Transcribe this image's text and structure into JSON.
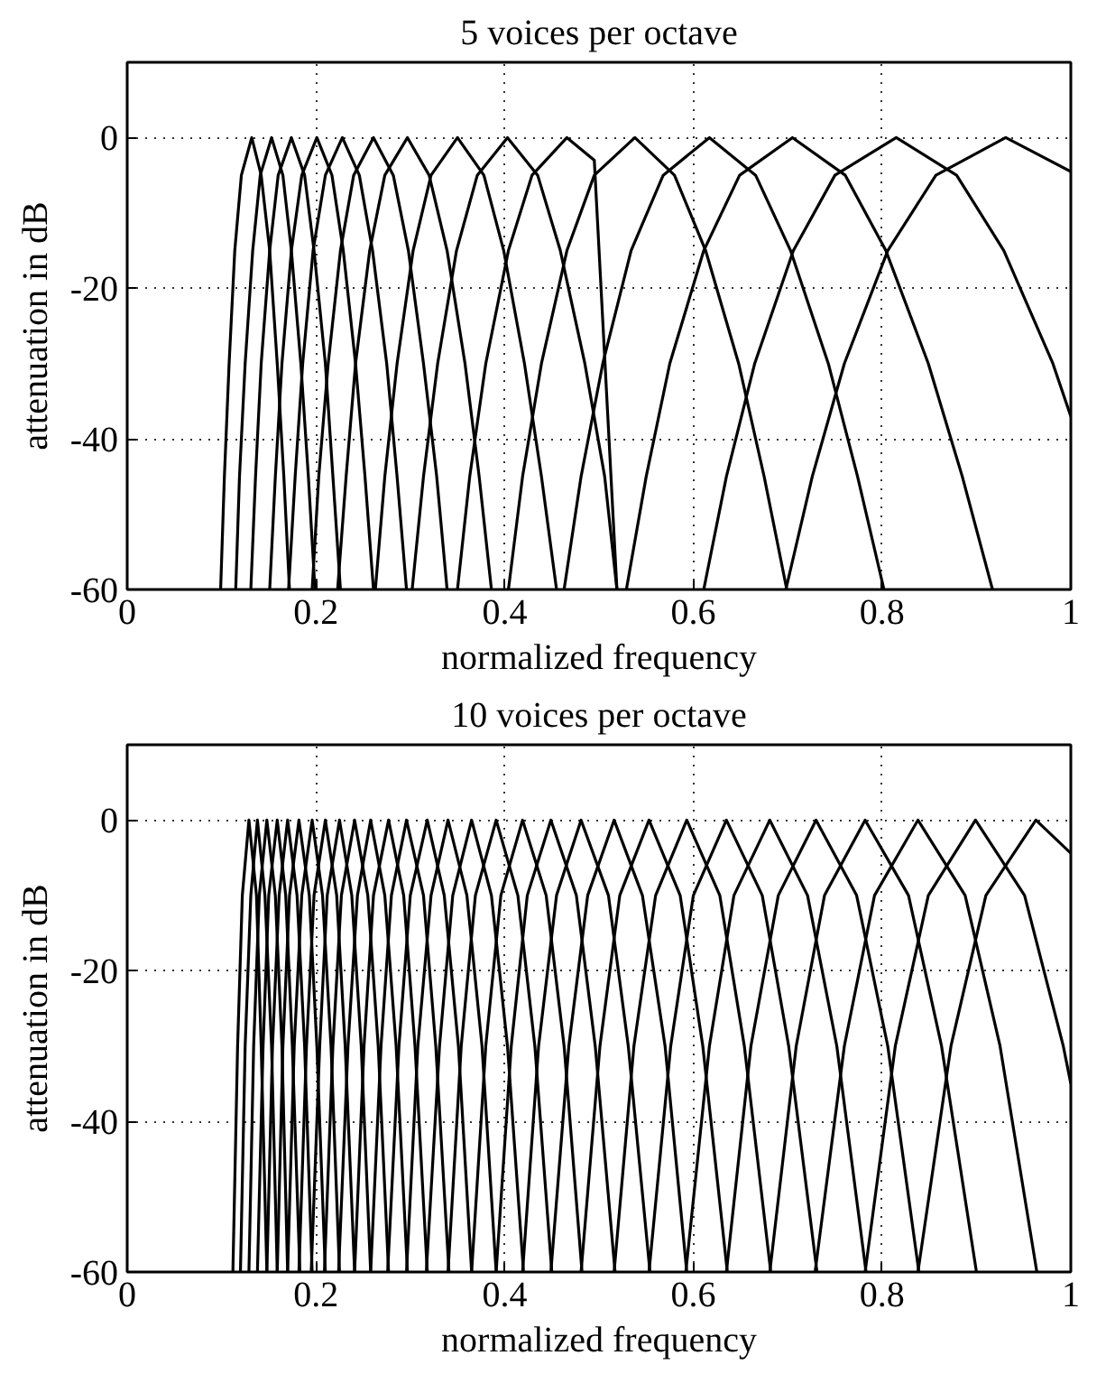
{
  "chart_data": [
    {
      "type": "line",
      "title": "5 voices per octave",
      "xlabel": "normalized frequency",
      "ylabel": "attenuation in dB",
      "xlim": [
        0,
        1
      ],
      "ylim": [
        -60,
        10
      ],
      "xticks": [
        0,
        0.2,
        0.4,
        0.6,
        0.8,
        1
      ],
      "yticks": [
        -60,
        -40,
        -20,
        0
      ],
      "grid": true,
      "series": [
        {
          "color": "#000000",
          "x": [
            0.099,
            0.103,
            0.108,
            0.114,
            0.121,
            0.132,
            0.142,
            0.151,
            0.159,
            0.166,
            0.172
          ],
          "values": [
            -60,
            -45,
            -30,
            -15,
            -5,
            0,
            -5,
            -15,
            -30,
            -45,
            -60
          ]
        },
        {
          "color": "#000000",
          "x": [
            0.115,
            0.119,
            0.125,
            0.133,
            0.141,
            0.153,
            0.165,
            0.174,
            0.184,
            0.192,
            0.199
          ],
          "values": [
            -60,
            -45,
            -30,
            -15,
            -5,
            0,
            -5,
            -15,
            -30,
            -45,
            -60
          ]
        },
        {
          "color": "#000000",
          "x": [
            0.131,
            0.136,
            0.142,
            0.151,
            0.16,
            0.174,
            0.188,
            0.198,
            0.21,
            0.218,
            0.226
          ],
          "values": [
            -60,
            -45,
            -30,
            -15,
            -5,
            0,
            -5,
            -15,
            -30,
            -45,
            -60
          ]
        },
        {
          "color": "#000000",
          "x": [
            0.151,
            0.157,
            0.164,
            0.174,
            0.185,
            0.201,
            0.217,
            0.229,
            0.242,
            0.252,
            0.261
          ],
          "values": [
            -60,
            -45,
            -30,
            -15,
            -5,
            0,
            -5,
            -15,
            -30,
            -45,
            -60
          ]
        },
        {
          "color": "#000000",
          "x": [
            0.171,
            0.178,
            0.186,
            0.197,
            0.21,
            0.228,
            0.246,
            0.26,
            0.275,
            0.286,
            0.296
          ],
          "values": [
            -60,
            -45,
            -30,
            -15,
            -5,
            0,
            -5,
            -15,
            -30,
            -45,
            -60
          ]
        },
        {
          "color": "#000000",
          "x": [
            0.196,
            0.203,
            0.213,
            0.226,
            0.24,
            0.261,
            0.282,
            0.298,
            0.314,
            0.328,
            0.339
          ],
          "values": [
            -60,
            -45,
            -30,
            -15,
            -5,
            0,
            -5,
            -15,
            -30,
            -45,
            -60
          ]
        },
        {
          "color": "#000000",
          "x": [
            0.223,
            0.232,
            0.242,
            0.257,
            0.273,
            0.297,
            0.32,
            0.339,
            0.358,
            0.373,
            0.386
          ],
          "values": [
            -60,
            -45,
            -30,
            -15,
            -5,
            0,
            -5,
            -15,
            -30,
            -45,
            -60
          ]
        },
        {
          "color": "#000000",
          "x": [
            0.263,
            0.273,
            0.286,
            0.303,
            0.322,
            0.35,
            0.378,
            0.399,
            0.421,
            0.439,
            0.455
          ],
          "values": [
            -60,
            -45,
            -30,
            -15,
            -5,
            0,
            -5,
            -15,
            -30,
            -45,
            -60
          ]
        },
        {
          "color": "#000000",
          "x": [
            0.302,
            0.314,
            0.329,
            0.349,
            0.371,
            0.403,
            0.435,
            0.459,
            0.485,
            0.506,
            0.519
          ],
          "values": [
            -60,
            -45,
            -30,
            -15,
            -5,
            0,
            -5,
            -15,
            -30,
            -45,
            -60
          ]
        },
        {
          "color": "#000000",
          "x": [
            0.35,
            0.363,
            0.38,
            0.404,
            0.429,
            0.466,
            0.495,
            0.519
          ],
          "values": [
            -60,
            -45,
            -30,
            -15,
            -5,
            0,
            -3,
            -60
          ]
        },
        {
          "color": "#000000",
          "x": [
            0.404,
            0.419,
            0.439,
            0.466,
            0.495,
            0.538,
            0.58,
            0.613,
            0.648,
            0.675,
            0.699
          ],
          "values": [
            -60,
            -45,
            -30,
            -15,
            -5,
            0,
            -5,
            -15,
            -30,
            -45,
            -60
          ]
        },
        {
          "color": "#000000",
          "x": [
            0.463,
            0.481,
            0.504,
            0.534,
            0.568,
            0.617,
            0.666,
            0.703,
            0.743,
            0.774,
            0.802
          ],
          "values": [
            -60,
            -45,
            -30,
            -15,
            -5,
            0,
            -5,
            -15,
            -30,
            -45,
            -60
          ]
        },
        {
          "color": "#000000",
          "x": [
            0.529,
            0.55,
            0.575,
            0.611,
            0.649,
            0.705,
            0.761,
            0.804,
            0.849,
            0.885,
            0.917
          ],
          "values": [
            -60,
            -45,
            -30,
            -15,
            -5,
            0,
            -5,
            -15,
            -30,
            -45,
            -60
          ]
        },
        {
          "color": "#000000",
          "x": [
            0.611,
            0.635,
            0.665,
            0.706,
            0.75,
            0.815,
            0.879,
            0.929,
            0.981,
            1
          ],
          "values": [
            -60,
            -45,
            -30,
            -15,
            -5,
            0,
            -5,
            -15,
            -30,
            -37
          ]
        },
        {
          "color": "#000000",
          "x": [
            0.698,
            0.726,
            0.76,
            0.806,
            0.857,
            0.931,
            1
          ],
          "values": [
            -60,
            -45,
            -30,
            -15,
            -5,
            0,
            -4.5
          ]
        }
      ]
    },
    {
      "type": "line",
      "title": "10 voices per octave",
      "xlabel": "normalized frequency",
      "ylabel": "attenuation in dB",
      "xlim": [
        0,
        1
      ],
      "ylim": [
        -60,
        10
      ],
      "xticks": [
        0,
        0.2,
        0.4,
        0.6,
        0.8,
        1
      ],
      "yticks": [
        -60,
        -40,
        -20,
        0
      ],
      "grid": true,
      "series": [
        {
          "color": "#000000",
          "x": [
            0.838,
            0.873,
            0.91,
            0.963,
            1
          ],
          "values": [
            -60,
            -30,
            -10,
            0,
            -4.4
          ]
        },
        {
          "color": "#000000",
          "x": [
            0.782,
            0.814,
            0.849,
            0.899,
            0.951,
            0.992,
            1
          ],
          "values": [
            -60,
            -30,
            -10,
            0,
            -10,
            -30,
            -35
          ]
        },
        {
          "color": "#000000",
          "x": [
            0.729,
            0.76,
            0.792,
            0.838,
            0.888,
            0.925,
            0.964
          ],
          "values": [
            -60,
            -30,
            -10,
            0,
            -10,
            -30,
            -60
          ]
        },
        {
          "color": "#000000",
          "x": [
            0.681,
            0.709,
            0.739,
            0.782,
            0.828,
            0.863,
            0.9
          ],
          "values": [
            -60,
            -30,
            -10,
            0,
            -10,
            -30,
            -60
          ]
        },
        {
          "color": "#000000",
          "x": [
            0.635,
            0.661,
            0.69,
            0.73,
            0.773,
            0.806,
            0.839
          ],
          "values": [
            -60,
            -30,
            -10,
            0,
            -10,
            -30,
            -60
          ]
        },
        {
          "color": "#000000",
          "x": [
            0.592,
            0.617,
            0.643,
            0.681,
            0.721,
            0.752,
            0.783
          ],
          "values": [
            -60,
            -30,
            -10,
            0,
            -10,
            -30,
            -60
          ]
        },
        {
          "color": "#000000",
          "x": [
            0.553,
            0.576,
            0.6,
            0.635,
            0.673,
            0.701,
            0.731
          ],
          "values": [
            -60,
            -30,
            -10,
            0,
            -10,
            -30,
            -60
          ]
        },
        {
          "color": "#000000",
          "x": [
            0.516,
            0.537,
            0.56,
            0.593,
            0.628,
            0.654,
            0.682
          ],
          "values": [
            -60,
            -30,
            -10,
            0,
            -10,
            -30,
            -60
          ]
        },
        {
          "color": "#000000",
          "x": [
            0.481,
            0.501,
            0.522,
            0.553,
            0.586,
            0.61,
            0.636
          ],
          "values": [
            -60,
            -30,
            -10,
            0,
            -10,
            -30,
            -60
          ]
        },
        {
          "color": "#000000",
          "x": [
            0.449,
            0.468,
            0.488,
            0.516,
            0.546,
            0.57,
            0.593
          ],
          "values": [
            -60,
            -30,
            -10,
            0,
            -10,
            -30,
            -60
          ]
        },
        {
          "color": "#000000",
          "x": [
            0.419,
            0.436,
            0.455,
            0.481,
            0.51,
            0.531,
            0.554
          ],
          "values": [
            -60,
            -30,
            -10,
            0,
            -10,
            -30,
            -60
          ]
        },
        {
          "color": "#000000",
          "x": [
            0.391,
            0.407,
            0.424,
            0.449,
            0.476,
            0.496,
            0.517
          ],
          "values": [
            -60,
            -30,
            -10,
            0,
            -10,
            -30,
            -60
          ]
        },
        {
          "color": "#000000",
          "x": [
            0.365,
            0.38,
            0.396,
            0.419,
            0.444,
            0.463,
            0.482
          ],
          "values": [
            -60,
            -30,
            -10,
            0,
            -10,
            -30,
            -60
          ]
        },
        {
          "color": "#000000",
          "x": [
            0.34,
            0.354,
            0.369,
            0.391,
            0.414,
            0.432,
            0.45
          ],
          "values": [
            -60,
            -30,
            -10,
            0,
            -10,
            -30,
            -60
          ]
        },
        {
          "color": "#000000",
          "x": [
            0.317,
            0.331,
            0.345,
            0.365,
            0.386,
            0.403,
            0.42
          ],
          "values": [
            -60,
            -30,
            -10,
            0,
            -10,
            -30,
            -60
          ]
        },
        {
          "color": "#000000",
          "x": [
            0.296,
            0.308,
            0.322,
            0.34,
            0.36,
            0.376,
            0.391
          ],
          "values": [
            -60,
            -30,
            -10,
            0,
            -10,
            -30,
            -60
          ]
        },
        {
          "color": "#000000",
          "x": [
            0.276,
            0.288,
            0.3,
            0.318,
            0.336,
            0.351,
            0.365
          ],
          "values": [
            -60,
            -30,
            -10,
            0,
            -10,
            -30,
            -60
          ]
        },
        {
          "color": "#000000",
          "x": [
            0.258,
            0.269,
            0.28,
            0.296,
            0.314,
            0.327,
            0.341
          ],
          "values": [
            -60,
            -30,
            -10,
            0,
            -10,
            -30,
            -60
          ]
        },
        {
          "color": "#000000",
          "x": [
            0.241,
            0.251,
            0.261,
            0.277,
            0.293,
            0.305,
            0.318
          ],
          "values": [
            -60,
            -30,
            -10,
            0,
            -10,
            -30,
            -60
          ]
        },
        {
          "color": "#000000",
          "x": [
            0.224,
            0.234,
            0.244,
            0.258,
            0.273,
            0.285,
            0.297
          ],
          "values": [
            -60,
            -30,
            -10,
            0,
            -10,
            -30,
            -60
          ]
        },
        {
          "color": "#000000",
          "x": [
            0.209,
            0.218,
            0.227,
            0.241,
            0.255,
            0.266,
            0.277
          ],
          "values": [
            -60,
            -30,
            -10,
            0,
            -10,
            -30,
            -60
          ]
        },
        {
          "color": "#000000",
          "x": [
            0.195,
            0.204,
            0.212,
            0.225,
            0.238,
            0.248,
            0.258
          ],
          "values": [
            -60,
            -30,
            -10,
            0,
            -10,
            -30,
            -60
          ]
        },
        {
          "color": "#000000",
          "x": [
            0.182,
            0.19,
            0.198,
            0.21,
            0.222,
            0.231,
            0.241
          ],
          "values": [
            -60,
            -30,
            -10,
            0,
            -10,
            -30,
            -60
          ]
        },
        {
          "color": "#000000",
          "x": [
            0.17,
            0.177,
            0.185,
            0.196,
            0.207,
            0.216,
            0.225
          ],
          "values": [
            -60,
            -30,
            -10,
            0,
            -10,
            -30,
            -60
          ]
        },
        {
          "color": "#000000",
          "x": [
            0.159,
            0.165,
            0.172,
            0.182,
            0.193,
            0.201,
            0.21
          ],
          "values": [
            -60,
            -30,
            -10,
            0,
            -10,
            -30,
            -60
          ]
        },
        {
          "color": "#000000",
          "x": [
            0.148,
            0.154,
            0.161,
            0.17,
            0.18,
            0.188,
            0.196
          ],
          "values": [
            -60,
            -30,
            -10,
            0,
            -10,
            -30,
            -60
          ]
        },
        {
          "color": "#000000",
          "x": [
            0.138,
            0.144,
            0.15,
            0.159,
            0.168,
            0.175,
            0.183
          ],
          "values": [
            -60,
            -30,
            -10,
            0,
            -10,
            -30,
            -60
          ]
        },
        {
          "color": "#000000",
          "x": [
            0.129,
            0.134,
            0.14,
            0.148,
            0.157,
            0.164,
            0.17
          ],
          "values": [
            -60,
            -30,
            -10,
            0,
            -10,
            -30,
            -60
          ]
        },
        {
          "color": "#000000",
          "x": [
            0.12,
            0.125,
            0.131,
            0.138,
            0.146,
            0.153,
            0.159
          ],
          "values": [
            -60,
            -30,
            -10,
            0,
            -10,
            -30,
            -60
          ]
        },
        {
          "color": "#000000",
          "x": [
            0.112,
            0.117,
            0.122,
            0.129,
            0.137,
            0.142,
            0.148
          ],
          "values": [
            -60,
            -30,
            -10,
            0,
            -10,
            -30,
            -60
          ]
        }
      ]
    }
  ]
}
